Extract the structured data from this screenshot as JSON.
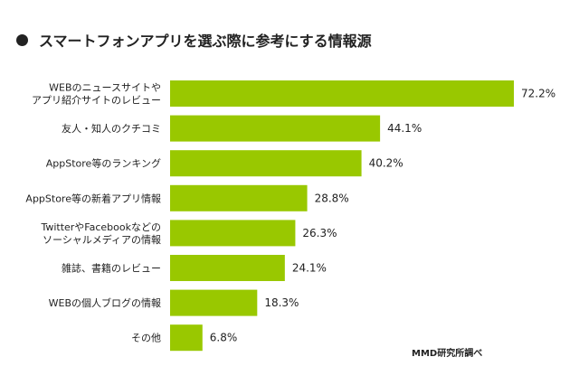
{
  "chart_data": {
    "type": "bar",
    "orientation": "horizontal",
    "title": "スマートフォンアプリを選ぶ際に参考にする情報源",
    "categories": [
      [
        "WEBのニュースサイトや",
        "アプリ紹介サイトのレビュー"
      ],
      [
        "友人・知人のクチコミ"
      ],
      [
        "AppStore等のランキング"
      ],
      [
        "AppStore等の新着アプリ情報"
      ],
      [
        "TwitterやFacebookなどの",
        "ソーシャルメディアの情報"
      ],
      [
        "雑誌、書籍のレビュー"
      ],
      [
        "WEBの個人ブログの情報"
      ],
      [
        "その他"
      ]
    ],
    "values": [
      72.2,
      44.1,
      40.2,
      28.8,
      26.3,
      24.1,
      18.3,
      6.8
    ],
    "value_labels": [
      "72.2%",
      "44.1%",
      "40.2%",
      "28.8%",
      "26.3%",
      "24.1%",
      "18.3%",
      "6.8%"
    ],
    "xlim": [
      0,
      80
    ],
    "grid": false,
    "bar_color": "#99c800",
    "source": "MMD研究所調べ"
  }
}
